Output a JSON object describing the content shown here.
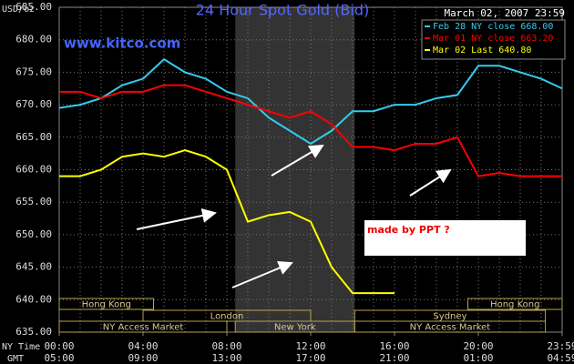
{
  "chart_data": {
    "type": "line",
    "title": "24 Hour Spot Gold (Bid)",
    "subtitle": "www.kitco.com",
    "date": "March 02, 2007 23:59",
    "ylabel": "USD/oz",
    "xlabel": "NY Time",
    "x2label": "GMT",
    "annotation": "made by PPT ?",
    "x": [
      0,
      1,
      2,
      3,
      4,
      5,
      6,
      7,
      8,
      9,
      10,
      11,
      12,
      13,
      14,
      15,
      16,
      17,
      18,
      19,
      20,
      21,
      22,
      23,
      24
    ],
    "series": [
      {
        "name": "Feb 28 NY close 668.00",
        "color": "#33ccee",
        "values": [
          669.5,
          670,
          671,
          673,
          674,
          677,
          675,
          674,
          672,
          671,
          668,
          666,
          664,
          666,
          669,
          669,
          670,
          670,
          671,
          671.5,
          676,
          676,
          675,
          674,
          672.5
        ]
      },
      {
        "name": "Mar 01 NY close 663.20",
        "color": "#ff0000",
        "values": [
          672,
          672,
          671,
          672,
          672,
          673,
          673,
          672,
          671,
          670,
          669,
          668,
          669,
          667,
          663.5,
          663.5,
          663,
          664,
          664,
          665,
          659,
          659.5,
          659,
          659,
          659
        ]
      },
      {
        "name": "Mar 02 Last 640.80",
        "color": "#ffff00",
        "values": [
          659,
          659,
          660,
          662,
          662.5,
          662,
          663,
          662,
          660,
          652,
          653,
          653.5,
          652,
          645,
          641,
          641,
          641,
          null,
          null,
          null,
          null,
          null,
          null,
          null,
          null
        ]
      }
    ],
    "xlim": [
      0,
      24
    ],
    "xticks": [
      {
        "value": 0,
        "label": "00:00"
      },
      {
        "value": 4,
        "label": "04:00"
      },
      {
        "value": 8,
        "label": "08:00"
      },
      {
        "value": 12,
        "label": "12:00"
      },
      {
        "value": 16,
        "label": "16:00"
      },
      {
        "value": 20,
        "label": "20:00"
      },
      {
        "value": 24,
        "label": "23:59"
      }
    ],
    "x2ticks": [
      {
        "value": 0,
        "label": "05:00"
      },
      {
        "value": 4,
        "label": "09:00"
      },
      {
        "value": 8,
        "label": "13:00"
      },
      {
        "value": 12,
        "label": "17:00"
      },
      {
        "value": 16,
        "label": "21:00"
      },
      {
        "value": 20,
        "label": "01:00"
      },
      {
        "value": 24,
        "label": "04:59"
      }
    ],
    "ylim": [
      635,
      685
    ],
    "yticks": [
      {
        "value": 635,
        "label": "635.00"
      },
      {
        "value": 640,
        "label": "640.00"
      },
      {
        "value": 645,
        "label": "645.00"
      },
      {
        "value": 650,
        "label": "650.00"
      },
      {
        "value": 655,
        "label": "655.00"
      },
      {
        "value": 660,
        "label": "660.00"
      },
      {
        "value": 665,
        "label": "665.00"
      },
      {
        "value": 670,
        "label": "670.00"
      },
      {
        "value": 675,
        "label": "675.00"
      },
      {
        "value": 680,
        "label": "680.00"
      },
      {
        "value": 685,
        "label": "685.00"
      }
    ],
    "grid": true,
    "sessions": [
      [
        {
          "label": "Hong Kong",
          "start": 0,
          "end": 4.5
        },
        {
          "label": "Hong Kong",
          "start": 19.5,
          "end": 24
        }
      ],
      [
        {
          "label": "London",
          "start": 4,
          "end": 12
        },
        {
          "label": "Sydney",
          "start": 14.1,
          "end": 23.2
        }
      ],
      [
        {
          "label": "NY Access Market",
          "start": 0,
          "end": 8
        },
        {
          "label": "New York",
          "start": 8.4,
          "end": 14.1
        },
        {
          "label": "NY Access Market",
          "start": 14.1,
          "end": 23.2
        }
      ]
    ]
  }
}
